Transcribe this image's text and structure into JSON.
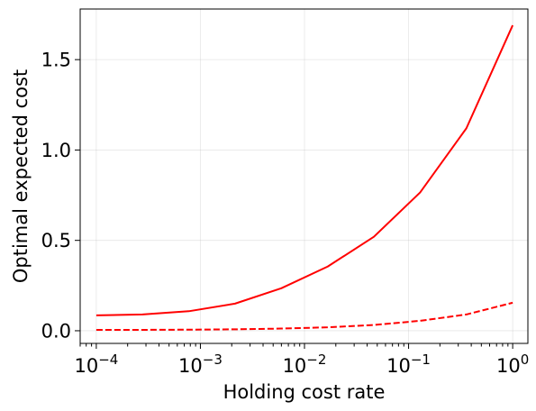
{
  "chart_data": {
    "type": "line",
    "title": "",
    "xlabel": "Holding cost rate",
    "ylabel": "Optimal expected cost",
    "xscale": "log",
    "xlim": [
      7e-05,
      1.4
    ],
    "ylim": [
      -0.07,
      1.78
    ],
    "grid": true,
    "line_color": "#ff0000",
    "x_ticks": [
      {
        "value": 0.0001,
        "base": "10",
        "exp": "−4"
      },
      {
        "value": 0.001,
        "base": "10",
        "exp": "−3"
      },
      {
        "value": 0.01,
        "base": "10",
        "exp": "−2"
      },
      {
        "value": 0.1,
        "base": "10",
        "exp": "−1"
      },
      {
        "value": 1,
        "base": "10",
        "exp": "0"
      }
    ],
    "y_ticks": [
      {
        "value": 0.0,
        "label": "0.0"
      },
      {
        "value": 0.5,
        "label": "0.5"
      },
      {
        "value": 1.0,
        "label": "1.0"
      },
      {
        "value": 1.5,
        "label": "1.5"
      }
    ],
    "x": [
      0.0001,
      0.000278,
      0.000774,
      0.00215,
      0.00599,
      0.0167,
      0.0464,
      0.129,
      0.359,
      1.0
    ],
    "series": [
      {
        "style": "solid",
        "values": [
          0.085,
          0.09,
          0.108,
          0.15,
          0.235,
          0.355,
          0.52,
          0.765,
          1.12,
          1.69
        ]
      },
      {
        "style": "dashed",
        "values": [
          0.005,
          0.005,
          0.006,
          0.008,
          0.012,
          0.019,
          0.032,
          0.055,
          0.09,
          0.155
        ]
      }
    ]
  }
}
